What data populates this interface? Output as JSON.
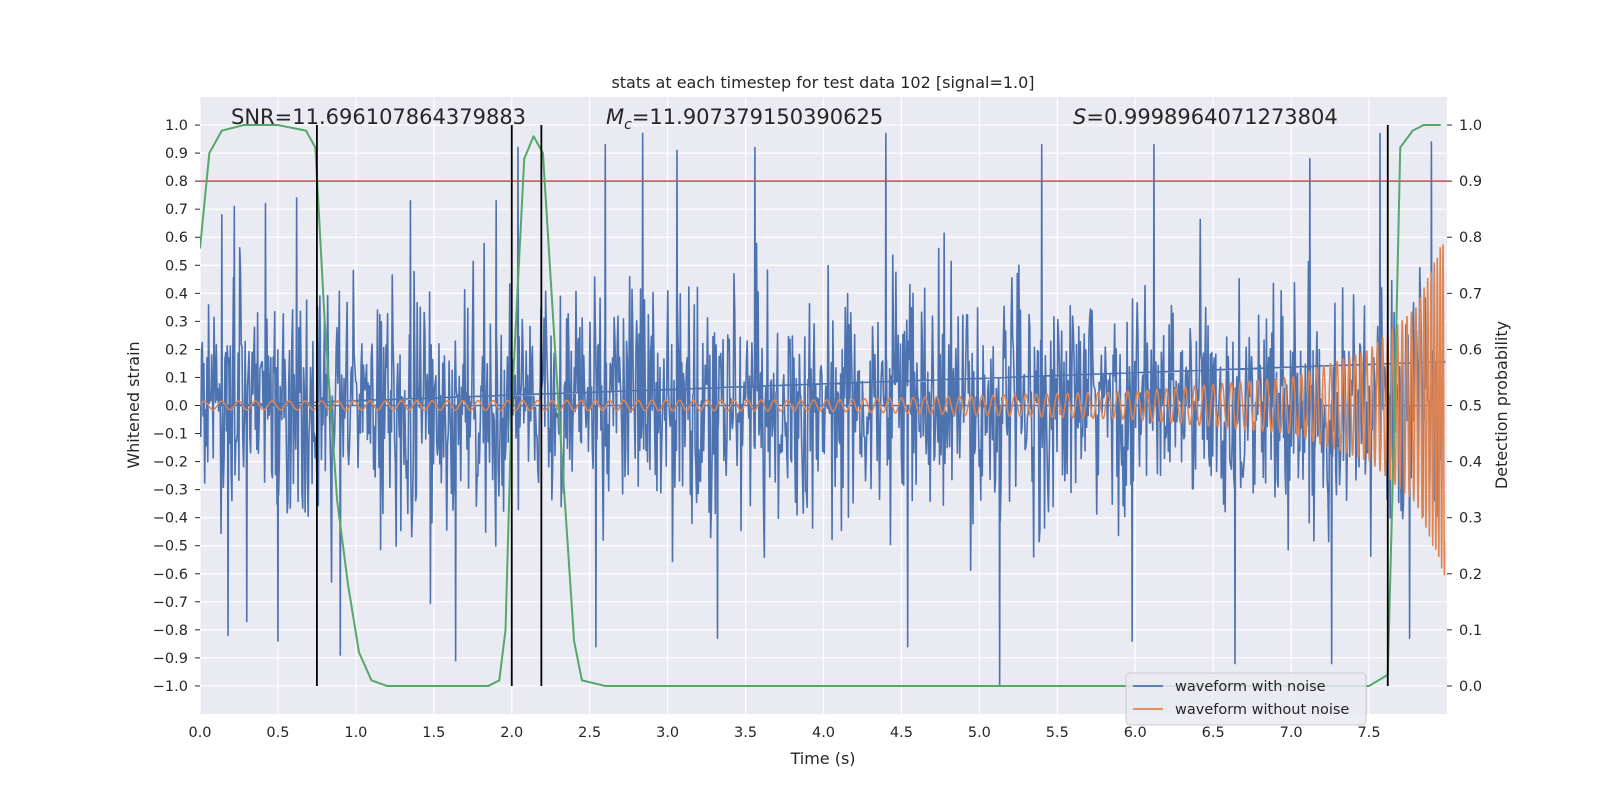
{
  "chart_data": {
    "type": "line",
    "title": "stats at each timestep for test data 102 [signal=1.0]",
    "xlabel": "Time (s)",
    "ylabel": "Whitened strain",
    "y2label": "Detection probability",
    "xlim": [
      0.0,
      8.0
    ],
    "ylim": [
      -1.1,
      1.1
    ],
    "y2lim": [
      -0.05,
      1.05
    ],
    "x_ticks": [
      0.0,
      0.5,
      1.0,
      1.5,
      2.0,
      2.5,
      3.0,
      3.5,
      4.0,
      4.5,
      5.0,
      5.5,
      6.0,
      6.5,
      7.0,
      7.5
    ],
    "x_tick_labels": [
      "0.0",
      "0.5",
      "1.0",
      "1.5",
      "2.0",
      "2.5",
      "3.0",
      "3.5",
      "4.0",
      "4.5",
      "5.0",
      "5.5",
      "6.0",
      "6.5",
      "7.0",
      "7.5"
    ],
    "y_ticks": [
      1.0,
      0.9,
      0.8,
      0.7,
      0.6,
      0.5,
      0.4,
      0.3,
      0.2,
      0.1,
      0.0,
      -0.1,
      -0.2,
      -0.3,
      -0.4,
      -0.5,
      -0.6,
      -0.7,
      -0.8,
      -0.9,
      -1.0
    ],
    "y_tick_labels": [
      "1.0",
      "0.9",
      "0.8",
      "0.7",
      "0.6",
      "0.5",
      "0.4",
      "0.3",
      "0.2",
      "0.1",
      "0.0",
      "−0.1",
      "−0.2",
      "−0.3",
      "−0.4",
      "−0.5",
      "−0.6",
      "−0.7",
      "−0.8",
      "−0.9",
      "−1.0"
    ],
    "y2_ticks": [
      1.0,
      0.9,
      0.8,
      0.7,
      0.6,
      0.5,
      0.4,
      0.3,
      0.2,
      0.1,
      0.0
    ],
    "y2_tick_labels": [
      "1.0",
      "0.9",
      "0.8",
      "0.7",
      "0.6",
      "0.5",
      "0.4",
      "0.3",
      "0.2",
      "0.1",
      "0.0"
    ],
    "grid": true,
    "annotations": {
      "snr": "SNR=11.696107864379883",
      "mc_symbol": "M",
      "mc_subscript": "c",
      "mc_value": "=11.907379150390625",
      "s_symbol": "S",
      "s_value": "=0.9998964071273804"
    },
    "threshold": {
      "value": 0.9,
      "color": "#c44e52",
      "axis": "y2"
    },
    "vertical_lines": [
      0.75,
      2.0,
      2.19,
      7.62
    ],
    "series": [
      {
        "name": "waveform with noise",
        "color": "#4c72b0",
        "kind": "noise",
        "samples": 1600,
        "envelope_rms": 0.2,
        "peaks": [
          {
            "x": 0.14,
            "y": 0.68
          },
          {
            "x": 0.22,
            "y": 0.71
          },
          {
            "x": 0.42,
            "y": 0.72
          },
          {
            "x": 0.62,
            "y": 0.74
          },
          {
            "x": 1.35,
            "y": 0.73
          },
          {
            "x": 1.9,
            "y": 0.73
          },
          {
            "x": 2.04,
            "y": 0.92
          },
          {
            "x": 2.6,
            "y": 0.93
          },
          {
            "x": 2.84,
            "y": 0.97
          },
          {
            "x": 3.06,
            "y": 0.91
          },
          {
            "x": 3.56,
            "y": 0.92
          },
          {
            "x": 4.4,
            "y": 0.97
          },
          {
            "x": 5.4,
            "y": 0.93
          },
          {
            "x": 6.12,
            "y": 0.93
          },
          {
            "x": 7.12,
            "y": 0.88
          },
          {
            "x": 7.57,
            "y": 0.97
          },
          {
            "x": 7.9,
            "y": 0.94
          }
        ],
        "troughs": [
          {
            "x": 0.18,
            "y": -0.82
          },
          {
            "x": 0.3,
            "y": -0.77
          },
          {
            "x": 0.5,
            "y": -0.84
          },
          {
            "x": 0.9,
            "y": -0.89
          },
          {
            "x": 1.64,
            "y": -0.91
          },
          {
            "x": 2.54,
            "y": -0.86
          },
          {
            "x": 3.32,
            "y": -0.83
          },
          {
            "x": 4.54,
            "y": -0.86
          },
          {
            "x": 5.13,
            "y": -1.0
          },
          {
            "x": 5.98,
            "y": -0.84
          },
          {
            "x": 6.64,
            "y": -0.92
          },
          {
            "x": 7.26,
            "y": -0.92
          },
          {
            "x": 7.76,
            "y": -0.83
          }
        ]
      },
      {
        "name": "waveform without noise",
        "color": "#dd8452",
        "kind": "chirp",
        "t_merge": 8.0,
        "amp_at": [
          [
            0.0,
            0.015
          ],
          [
            4.0,
            0.02
          ],
          [
            6.0,
            0.05
          ],
          [
            7.0,
            0.1
          ],
          [
            7.5,
            0.2
          ],
          [
            7.8,
            0.35
          ],
          [
            8.0,
            0.63
          ]
        ],
        "freq_at": [
          [
            0.0,
            9.0
          ],
          [
            4.0,
            12.0
          ],
          [
            7.0,
            18.0
          ],
          [
            7.8,
            35.0
          ],
          [
            8.0,
            60.0
          ]
        ]
      },
      {
        "name": "detection probability",
        "color": "#55a868",
        "axis": "y2",
        "x": [
          0.0,
          0.06,
          0.14,
          0.28,
          0.5,
          0.68,
          0.74,
          0.8,
          0.88,
          0.95,
          1.02,
          1.1,
          1.2,
          1.5,
          1.85,
          1.92,
          1.96,
          2.0,
          2.08,
          2.14,
          2.2,
          2.3,
          2.4,
          2.45,
          2.6,
          3.0,
          5.0,
          7.0,
          7.5,
          7.62,
          7.66,
          7.7,
          7.78,
          7.85,
          7.9,
          7.96
        ],
        "values": [
          0.78,
          0.95,
          0.99,
          1.0,
          1.0,
          0.99,
          0.96,
          0.65,
          0.33,
          0.18,
          0.06,
          0.01,
          0.0,
          0.0,
          0.0,
          0.01,
          0.1,
          0.5,
          0.94,
          0.98,
          0.95,
          0.5,
          0.08,
          0.01,
          0.0,
          0.0,
          0.0,
          0.0,
          0.0,
          0.02,
          0.45,
          0.96,
          0.99,
          1.0,
          1.0,
          1.0
        ]
      }
    ],
    "legend": {
      "position": "lower-right",
      "entries": [
        {
          "label": "waveform with noise",
          "color": "#4c72b0"
        },
        {
          "label": "waveform without noise",
          "color": "#dd8452"
        }
      ]
    }
  }
}
